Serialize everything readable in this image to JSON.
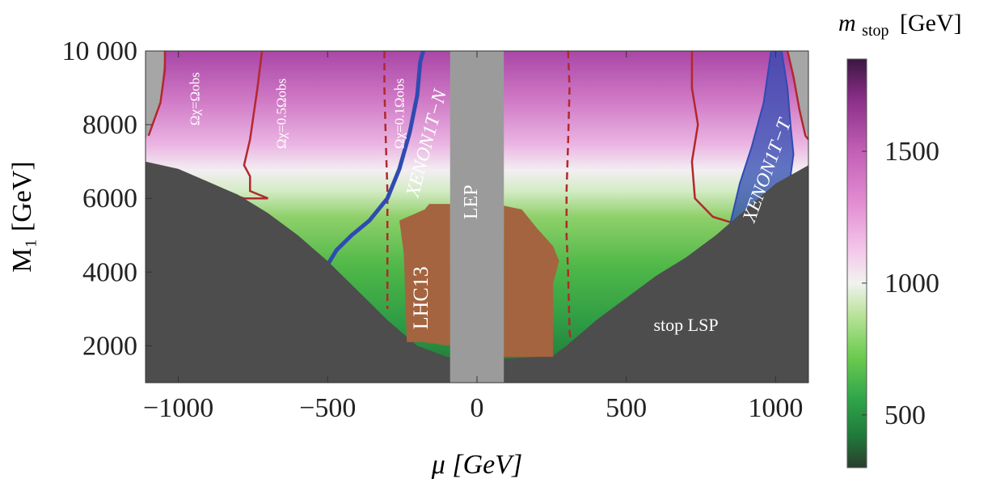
{
  "chart_data": {
    "type": "heatmap",
    "xlabel": "μ [GeV]",
    "ylabel": "M₁ [GeV]",
    "xlim": [
      -1110,
      1110
    ],
    "ylim": [
      1000,
      10000
    ],
    "x_ticks": [
      {
        "value": -1000,
        "label": "−1000"
      },
      {
        "value": -500,
        "label": "−500"
      },
      {
        "value": 0,
        "label": "0"
      },
      {
        "value": 500,
        "label": "500"
      },
      {
        "value": 1000,
        "label": "1000"
      }
    ],
    "y_ticks": [
      {
        "value": 2000,
        "label": "2000"
      },
      {
        "value": 4000,
        "label": "4000"
      },
      {
        "value": 6000,
        "label": "6000"
      },
      {
        "value": 8000,
        "label": "8000"
      },
      {
        "value": 10000,
        "label": "10 000"
      }
    ],
    "colorbar": {
      "title": "m_stop [GeV]",
      "title_main": "m",
      "title_sub": "stop",
      "title_unit": "[GeV]",
      "range": [
        300,
        1850
      ],
      "ticks": [
        {
          "value": 500,
          "label": "500"
        },
        {
          "value": 1000,
          "label": "1000"
        },
        {
          "value": 1500,
          "label": "1500"
        }
      ],
      "stops": [
        {
          "value": 300,
          "color": "#2a3d2c"
        },
        {
          "value": 420,
          "color": "#1f7a3a"
        },
        {
          "value": 560,
          "color": "#2fa54a"
        },
        {
          "value": 720,
          "color": "#6ccb4f"
        },
        {
          "value": 880,
          "color": "#b9e39a"
        },
        {
          "value": 1000,
          "color": "#f1f3ee"
        },
        {
          "value": 1120,
          "color": "#f4c9ea"
        },
        {
          "value": 1300,
          "color": "#e38ed3"
        },
        {
          "value": 1500,
          "color": "#c35fb6"
        },
        {
          "value": 1700,
          "color": "#8a2e87"
        },
        {
          "value": 1850,
          "color": "#3a1740"
        }
      ]
    },
    "regions": {
      "stop_lsp": {
        "label": "stop LSP",
        "color": "#4d4d4d",
        "left_boundary": [
          [
            -1110,
            7000
          ],
          [
            -1000,
            6800
          ],
          [
            -900,
            6450
          ],
          [
            -800,
            6100
          ],
          [
            -700,
            5600
          ],
          [
            -600,
            5000
          ],
          [
            -500,
            4300
          ],
          [
            -400,
            3500
          ],
          [
            -300,
            2700
          ],
          [
            -200,
            2000
          ],
          [
            -100,
            1700
          ],
          [
            0,
            1650
          ],
          [
            100,
            1650
          ],
          [
            200,
            1700
          ],
          [
            250,
            1700
          ]
        ],
        "right_boundary": [
          [
            250,
            1700
          ],
          [
            300,
            2000
          ],
          [
            400,
            2700
          ],
          [
            500,
            3300
          ],
          [
            600,
            3900
          ],
          [
            700,
            4400
          ],
          [
            800,
            5000
          ],
          [
            900,
            5700
          ],
          [
            1000,
            6400
          ],
          [
            1110,
            6900
          ]
        ]
      },
      "lep": {
        "label": "LEP",
        "color": "#9b9b9b",
        "x_range": [
          -90,
          90
        ]
      },
      "lhc13": {
        "label": "LHC13",
        "color": "#a4643f",
        "polygon": [
          [
            -235,
            2100
          ],
          [
            -245,
            4500
          ],
          [
            -260,
            5400
          ],
          [
            -175,
            5700
          ],
          [
            -160,
            5850
          ],
          [
            -90,
            5850
          ],
          [
            -90,
            2000
          ],
          [
            -180,
            2100
          ]
        ],
        "polygon_right": [
          [
            90,
            1700
          ],
          [
            90,
            5800
          ],
          [
            150,
            5700
          ],
          [
            200,
            5200
          ],
          [
            255,
            4700
          ],
          [
            275,
            4300
          ],
          [
            255,
            3700
          ],
          [
            255,
            1700
          ]
        ]
      },
      "corner_grey": {
        "color": "#a6a6a6"
      }
    },
    "contours": [
      {
        "label": "Ωχ=Ωobs",
        "style": "solid",
        "color": "#b3282d",
        "side": "left",
        "points": [
          [
            -1045,
            10000
          ],
          [
            -1045,
            9500
          ],
          [
            -1060,
            8600
          ],
          [
            -1100,
            7700
          ]
        ]
      },
      {
        "label": "Ωχ=0.5Ωobs",
        "style": "solid",
        "color": "#b3282d",
        "side": "left",
        "points": [
          [
            -720,
            10000
          ],
          [
            -735,
            9000
          ],
          [
            -760,
            7600
          ],
          [
            -780,
            6900
          ],
          [
            -760,
            6600
          ],
          [
            -760,
            6200
          ],
          [
            -700,
            6000
          ],
          [
            -780,
            6000
          ],
          [
            -820,
            6100
          ]
        ]
      },
      {
        "label": "Ωχ=0.1Ωobs",
        "style": "dashed",
        "color": "#b3282d",
        "side": "left",
        "points": [
          [
            -310,
            10000
          ],
          [
            -310,
            9000
          ],
          [
            -305,
            7500
          ],
          [
            -300,
            6200
          ],
          [
            -300,
            5000
          ],
          [
            -300,
            4000
          ],
          [
            -300,
            3000
          ]
        ]
      },
      {
        "label": "",
        "style": "dashed",
        "color": "#b3282d",
        "side": "right",
        "points": [
          [
            305,
            10000
          ],
          [
            310,
            9000
          ],
          [
            305,
            7500
          ],
          [
            300,
            6200
          ],
          [
            300,
            5000
          ],
          [
            305,
            4000
          ],
          [
            310,
            2400
          ],
          [
            315,
            2000
          ]
        ]
      },
      {
        "label": "",
        "style": "solid",
        "color": "#b3282d",
        "side": "right",
        "points": [
          [
            720,
            10000
          ],
          [
            720,
            9000
          ],
          [
            740,
            8000
          ],
          [
            720,
            7000
          ],
          [
            730,
            6000
          ],
          [
            790,
            5500
          ],
          [
            850,
            5350
          ]
        ]
      },
      {
        "label": "",
        "style": "solid",
        "color": "#b3282d",
        "side": "right",
        "points": [
          [
            1040,
            10000
          ],
          [
            1060,
            9300
          ],
          [
            1080,
            8400
          ],
          [
            1100,
            7700
          ],
          [
            1110,
            7600
          ]
        ]
      }
    ],
    "xenon": [
      {
        "label": "XENON1T−N",
        "color": "#2f4bb2",
        "points": [
          [
            -500,
            4200
          ],
          [
            -470,
            4600
          ],
          [
            -420,
            5000
          ],
          [
            -360,
            5400
          ],
          [
            -300,
            6000
          ],
          [
            -260,
            6800
          ],
          [
            -225,
            7800
          ],
          [
            -200,
            8800
          ],
          [
            -190,
            9700
          ],
          [
            -180,
            10000
          ]
        ]
      },
      {
        "label": "XENON1T−T",
        "color": "#2f4bb2",
        "points": [
          [
            845,
            5200
          ],
          [
            880,
            6400
          ],
          [
            920,
            7400
          ],
          [
            960,
            8600
          ],
          [
            985,
            10000
          ],
          [
            1020,
            10000
          ],
          [
            1040,
            9000
          ],
          [
            1050,
            8000
          ],
          [
            1060,
            7200
          ],
          [
            1050,
            6600
          ],
          [
            1000,
            6300
          ],
          [
            920,
            5800
          ],
          [
            845,
            5200
          ]
        ]
      }
    ],
    "annotations": [
      {
        "text": "Ωχ=Ωobs",
        "x": -930,
        "y": 8700
      },
      {
        "text": "Ωχ=0.5Ωobs",
        "x": -640,
        "y": 8300
      },
      {
        "text": "Ωχ=0.1Ωobs",
        "x": -245,
        "y": 8300
      },
      {
        "text": "XENON1T−N",
        "x": -150,
        "y": 7450
      },
      {
        "text": "XENON1T−T",
        "x": 990,
        "y": 6700
      },
      {
        "text": "LEP",
        "x": 0,
        "y": 5900
      },
      {
        "text": "LHC13",
        "x": -165,
        "y": 3300
      },
      {
        "text": "stop LSP",
        "x": 700,
        "y": 2400
      }
    ]
  }
}
